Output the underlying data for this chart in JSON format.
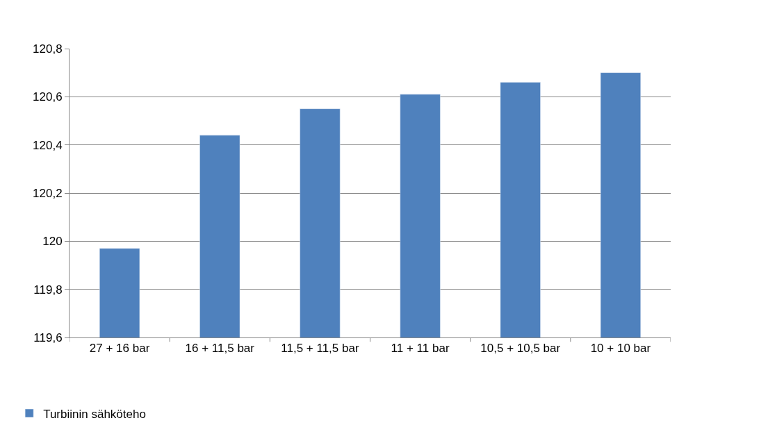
{
  "chart_data": {
    "type": "bar",
    "categories": [
      "27 + 16 bar",
      "16 + 11,5 bar",
      "11,5 + 11,5 bar",
      "11 + 11 bar",
      "10,5 + 10,5 bar",
      "10 + 10 bar"
    ],
    "series": [
      {
        "name": "Turbiinin sähköteho",
        "color": "#4f81bd",
        "values": [
          119.97,
          120.44,
          120.55,
          120.61,
          120.66,
          120.7
        ]
      }
    ],
    "ylim": [
      119.6,
      120.8
    ],
    "yticks": [
      {
        "value": 119.6,
        "label": "119,6"
      },
      {
        "value": 119.8,
        "label": "119,8"
      },
      120,
      {
        "value": 120.2,
        "label": "120,2"
      },
      {
        "value": 120.4,
        "label": "120,4"
      },
      {
        "value": 120.6,
        "label": "120,6"
      },
      {
        "value": 120.8,
        "label": "120,8"
      }
    ],
    "grid": "y",
    "legend": "bottom left"
  }
}
